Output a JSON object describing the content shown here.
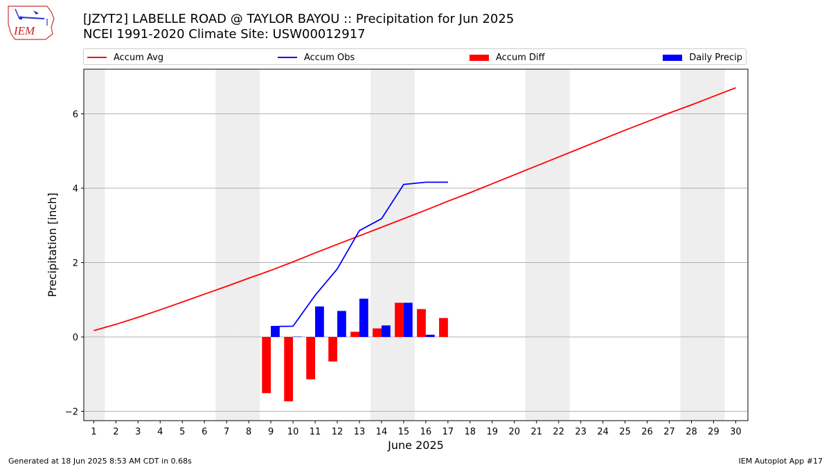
{
  "header": {
    "title_line1": "[JZYT2] LABELLE ROAD @ TAYLOR BAYOU :: Precipitation for Jun 2025",
    "title_line2": "NCEI 1991-2020 Climate Site: USW00012917",
    "logo_text": "IEM"
  },
  "footer": {
    "left": "Generated at 18 Jun 2025 8:53 AM CDT in 0.68s",
    "right": "IEM Autoplot App #17"
  },
  "legend": [
    {
      "label": "Accum Avg",
      "kind": "line",
      "color": "#ff0000"
    },
    {
      "label": "Accum Obs",
      "kind": "line",
      "color": "#0000ff"
    },
    {
      "label": "Accum Diff",
      "kind": "bar",
      "color": "#ff0000"
    },
    {
      "label": "Daily Precip",
      "kind": "bar",
      "color": "#0000ff"
    }
  ],
  "chart_data": {
    "type": "bar",
    "xlabel": "June 2025",
    "ylabel": "Precipitation [inch]",
    "xlim": [
      0.55,
      30.55
    ],
    "ylim": [
      -2.25,
      7.2
    ],
    "yticks": [
      -2,
      0,
      2,
      4,
      6
    ],
    "days": [
      1,
      2,
      3,
      4,
      5,
      6,
      7,
      8,
      9,
      10,
      11,
      12,
      13,
      14,
      15,
      16,
      17,
      18,
      19,
      20,
      21,
      22,
      23,
      24,
      25,
      26,
      27,
      28,
      29,
      30
    ],
    "weekend_days": [
      1,
      7,
      8,
      14,
      15,
      21,
      22,
      28,
      29
    ],
    "grid": "horizontal",
    "legend_position": "top",
    "series": [
      {
        "name": "Accum Avg",
        "type": "line",
        "color": "#ff0000",
        "x": [
          1,
          2,
          3,
          4,
          5,
          6,
          7,
          8,
          9,
          10,
          11,
          12,
          13,
          14,
          15,
          16,
          17,
          18,
          19,
          20,
          21,
          22,
          23,
          24,
          25,
          26,
          27,
          28,
          29,
          30
        ],
        "values": [
          0.17,
          0.34,
          0.53,
          0.73,
          0.94,
          1.15,
          1.36,
          1.58,
          1.79,
          2.02,
          2.26,
          2.49,
          2.72,
          2.95,
          3.18,
          3.41,
          3.65,
          3.88,
          4.12,
          4.36,
          4.6,
          4.84,
          5.08,
          5.32,
          5.56,
          5.79,
          6.02,
          6.24,
          6.47,
          6.7
        ]
      },
      {
        "name": "Accum Obs",
        "type": "line",
        "color": "#0000ff",
        "x": [
          9,
          10,
          11,
          12,
          13,
          14,
          15,
          16,
          17
        ],
        "values": [
          0.28,
          0.29,
          1.12,
          1.83,
          2.86,
          3.18,
          4.1,
          4.16,
          4.16
        ]
      },
      {
        "name": "Accum Diff",
        "type": "bar",
        "color": "#ff0000",
        "x": [
          9,
          10,
          11,
          12,
          13,
          14,
          15,
          16,
          17
        ],
        "values": [
          -1.51,
          -1.73,
          -1.14,
          -0.66,
          0.14,
          0.23,
          0.92,
          0.75,
          0.51
        ]
      },
      {
        "name": "Daily Precip",
        "type": "bar",
        "color": "#0000ff",
        "x": [
          9,
          10,
          11,
          12,
          13,
          14,
          15,
          16,
          17
        ],
        "values": [
          0.28,
          0.01,
          0.82,
          0.7,
          1.03,
          0.31,
          0.92,
          0.06,
          0.0
        ]
      }
    ]
  }
}
